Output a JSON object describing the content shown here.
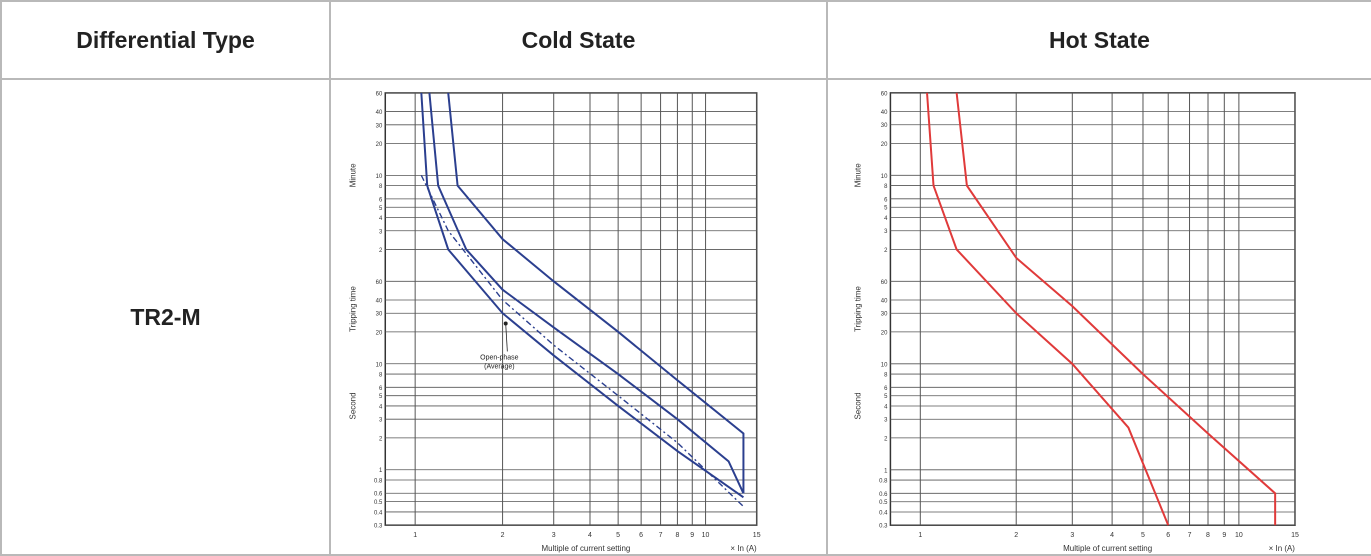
{
  "table": {
    "headers": [
      "Differential Type",
      "Cold State",
      "Hot State"
    ],
    "rows": [
      {
        "type": "TR2-M"
      }
    ]
  },
  "chart_data": [
    {
      "type": "line",
      "panel": "Cold State",
      "xlabel": "Multiple of current setting",
      "xunit": "× In (A)",
      "ylabel": "Tripping time",
      "yunit_groups": [
        "Minute",
        "Second"
      ],
      "x_ticks": [
        "1",
        "2",
        "3",
        "4",
        "5",
        "6",
        "7",
        "8",
        "9",
        "10",
        "15"
      ],
      "y_ticks_minute": [
        "60",
        "40",
        "30",
        "20",
        "10",
        "8",
        "6",
        "5",
        "4",
        "3",
        "2"
      ],
      "y_ticks_second": [
        "60",
        "40",
        "30",
        "20",
        "10",
        "8",
        "6",
        "5",
        "4",
        "3",
        "2",
        "1",
        "0.8",
        "0.6",
        "0.5",
        "0.4",
        "0.3"
      ],
      "annotation": [
        "Open-phase",
        "(Average)"
      ],
      "color": "#2b3f8f",
      "series": [
        {
          "style": "solid",
          "points": [
            [
              1.12,
              3600
            ],
            [
              1.2,
              480
            ],
            [
              1.5,
              120
            ],
            [
              2,
              50
            ],
            [
              3,
              22
            ],
            [
              5,
              8
            ],
            [
              8,
              3
            ],
            [
              12,
              1.2
            ],
            [
              13.5,
              0.6
            ]
          ]
        },
        {
          "style": "solid",
          "points": [
            [
              1.05,
              3600
            ],
            [
              1.1,
              480
            ],
            [
              1.3,
              120
            ],
            [
              2,
              30
            ],
            [
              3,
              12
            ],
            [
              5,
              4
            ],
            [
              8,
              1.5
            ],
            [
              13.5,
              0.55
            ]
          ]
        },
        {
          "style": "solid",
          "points": [
            [
              1.3,
              3600
            ],
            [
              1.4,
              480
            ],
            [
              2,
              150
            ],
            [
              3,
              60
            ],
            [
              5,
              20
            ],
            [
              8,
              7
            ],
            [
              13.5,
              2.2
            ],
            [
              13.5,
              0.6
            ]
          ]
        },
        {
          "style": "dashed",
          "points": [
            [
              1.05,
              600
            ],
            [
              1.3,
              180
            ],
            [
              2,
              40
            ],
            [
              3,
              15
            ],
            [
              5,
              5
            ],
            [
              8,
              1.8
            ],
            [
              13.5,
              0.45
            ]
          ]
        }
      ]
    },
    {
      "type": "line",
      "panel": "Hot State",
      "xlabel": "Multiple of current setting",
      "xunit": "× In (A)",
      "ylabel": "Tripping time",
      "yunit_groups": [
        "Minute",
        "Second"
      ],
      "x_ticks": [
        "1",
        "2",
        "3",
        "4",
        "5",
        "6",
        "7",
        "8",
        "9",
        "10",
        "15"
      ],
      "y_ticks_minute": [
        "60",
        "40",
        "30",
        "20",
        "10",
        "8",
        "6",
        "5",
        "4",
        "3",
        "2"
      ],
      "y_ticks_second": [
        "60",
        "40",
        "30",
        "20",
        "10",
        "8",
        "6",
        "5",
        "4",
        "3",
        "2",
        "1",
        "0.8",
        "0.6",
        "0.5",
        "0.4",
        "0.3"
      ],
      "color": "#e03a3a",
      "series": [
        {
          "style": "solid",
          "points": [
            [
              1.05,
              3600
            ],
            [
              1.1,
              480
            ],
            [
              1.3,
              120
            ],
            [
              2,
              30
            ],
            [
              3,
              10
            ],
            [
              4.5,
              2.5
            ],
            [
              6,
              0.3
            ]
          ]
        },
        {
          "style": "solid",
          "points": [
            [
              1.3,
              3600
            ],
            [
              1.4,
              480
            ],
            [
              2,
              100
            ],
            [
              3,
              35
            ],
            [
              5,
              8
            ],
            [
              8,
              2.2
            ],
            [
              13,
              0.6
            ],
            [
              13,
              0.3
            ]
          ]
        }
      ]
    }
  ]
}
